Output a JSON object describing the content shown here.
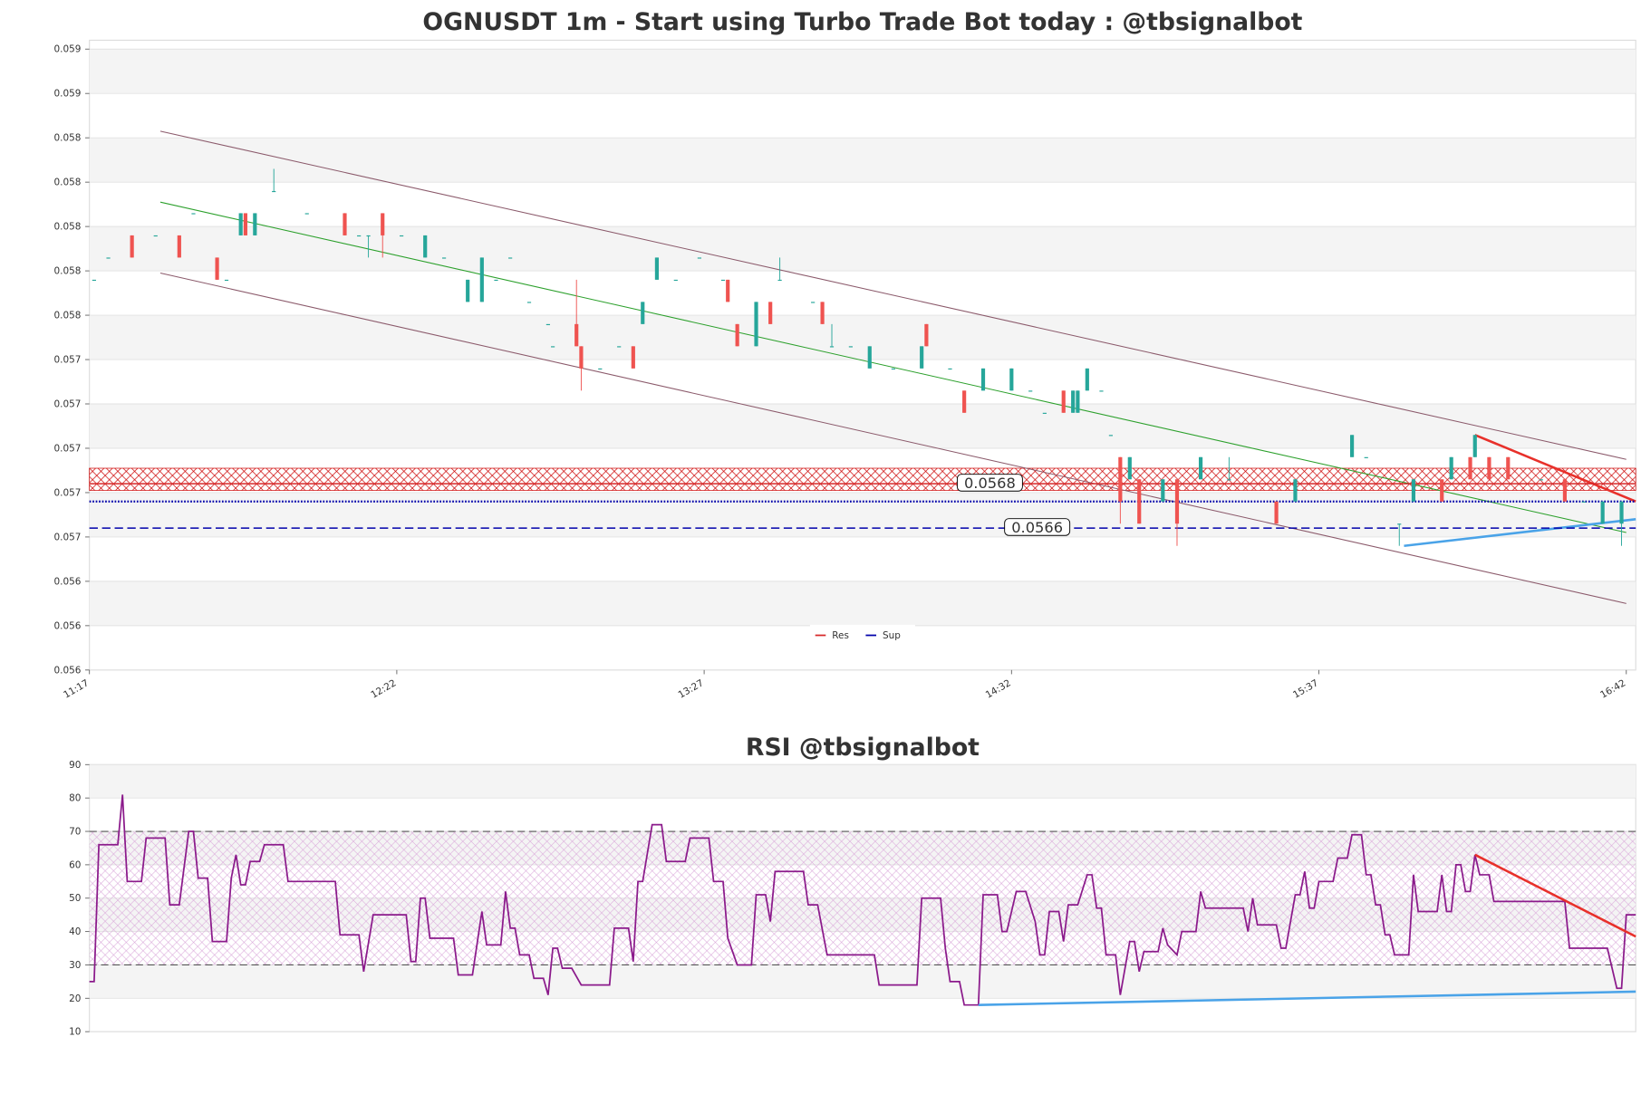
{
  "chart_data": [
    {
      "type": "candlestick",
      "title": "OGNUSDT 1m - Start using Turbo Trade Bot today : @tbsignalbot",
      "x": [
        1,
        4,
        9,
        14,
        19,
        22,
        27,
        29,
        32,
        33,
        35,
        39,
        46,
        54,
        57,
        59,
        62,
        66,
        71,
        75,
        80,
        83,
        86,
        89,
        93,
        97,
        98,
        103,
        104,
        108,
        112,
        115,
        117,
        120,
        124,
        129,
        134,
        135,
        137,
        141,
        144,
        146,
        153,
        155,
        157,
        161,
        165,
        170,
        176,
        177,
        182,
        185,
        189,
        195,
        199,
        202,
        206,
        208,
        209,
        211,
        214,
        216,
        218,
        220,
        222,
        227,
        230,
        235,
        241,
        251,
        255,
        267,
        270,
        277,
        280,
        286,
        288,
        292,
        293,
        296,
        300,
        307,
        312,
        316,
        320,
        324
      ],
      "open": [
        0.05776,
        0.05786,
        0.05796,
        0.05796,
        0.05796,
        0.05806,
        0.05786,
        0.05776,
        0.05796,
        0.05806,
        0.05796,
        0.05816,
        0.05806,
        0.05806,
        0.05796,
        0.05796,
        0.05806,
        0.05796,
        0.05786,
        0.05786,
        0.05766,
        0.05766,
        0.05776,
        0.05786,
        0.05766,
        0.05756,
        0.05746,
        0.05756,
        0.05746,
        0.05736,
        0.05746,
        0.05746,
        0.05756,
        0.05776,
        0.05776,
        0.05786,
        0.05776,
        0.05776,
        0.05756,
        0.05746,
        0.05766,
        0.05776,
        0.05766,
        0.05766,
        0.05746,
        0.05746,
        0.05736,
        0.05736,
        0.05736,
        0.05756,
        0.05736,
        0.05726,
        0.05726,
        0.05726,
        0.05726,
        0.05716,
        0.05726,
        0.05716,
        0.05716,
        0.05726,
        0.05726,
        0.05706,
        0.05696,
        0.05686,
        0.05686,
        0.05676,
        0.05686,
        0.05686,
        0.05686,
        0.05676,
        0.05676,
        0.05696,
        0.05696,
        0.05666,
        0.05676,
        0.05686,
        0.05686,
        0.05696,
        0.05696,
        0.05696,
        0.05696,
        0.05686,
        0.05686,
        0.05676,
        0.05666,
        0.05666
      ],
      "high": [
        0.05776,
        0.05786,
        0.05796,
        0.05796,
        0.05796,
        0.05806,
        0.05786,
        0.05776,
        0.05806,
        0.05806,
        0.05806,
        0.05826,
        0.05806,
        0.05806,
        0.05796,
        0.05796,
        0.05806,
        0.05796,
        0.05796,
        0.05786,
        0.05776,
        0.05786,
        0.05776,
        0.05786,
        0.05766,
        0.05756,
        0.05746,
        0.05776,
        0.05746,
        0.05736,
        0.05746,
        0.05746,
        0.05766,
        0.05786,
        0.05776,
        0.05786,
        0.05776,
        0.05776,
        0.05756,
        0.05766,
        0.05766,
        0.05786,
        0.05766,
        0.05766,
        0.05756,
        0.05746,
        0.05746,
        0.05736,
        0.05746,
        0.05756,
        0.05736,
        0.05726,
        0.05736,
        0.05736,
        0.05726,
        0.05716,
        0.05726,
        0.05726,
        0.05726,
        0.05736,
        0.05726,
        0.05706,
        0.05696,
        0.05696,
        0.05686,
        0.05686,
        0.05686,
        0.05696,
        0.05696,
        0.05676,
        0.05686,
        0.05706,
        0.05696,
        0.05666,
        0.05686,
        0.05686,
        0.05696,
        0.05696,
        0.05706,
        0.05696,
        0.05696,
        0.05686,
        0.05686,
        0.05676,
        0.05676,
        0.05676
      ],
      "low": [
        0.05776,
        0.05786,
        0.05786,
        0.05796,
        0.05786,
        0.05806,
        0.05776,
        0.05776,
        0.05796,
        0.05796,
        0.05796,
        0.05816,
        0.05806,
        0.05796,
        0.05796,
        0.05786,
        0.05786,
        0.05796,
        0.05786,
        0.05786,
        0.05766,
        0.05766,
        0.05776,
        0.05786,
        0.05766,
        0.05756,
        0.05746,
        0.05746,
        0.05726,
        0.05736,
        0.05746,
        0.05736,
        0.05756,
        0.05776,
        0.05776,
        0.05786,
        0.05776,
        0.05766,
        0.05746,
        0.05746,
        0.05756,
        0.05776,
        0.05766,
        0.05756,
        0.05746,
        0.05746,
        0.05736,
        0.05736,
        0.05736,
        0.05746,
        0.05736,
        0.05716,
        0.05726,
        0.05726,
        0.05726,
        0.05716,
        0.05716,
        0.05716,
        0.05716,
        0.05726,
        0.05726,
        0.05706,
        0.05666,
        0.05686,
        0.05666,
        0.05676,
        0.05656,
        0.05686,
        0.05686,
        0.05666,
        0.05676,
        0.05696,
        0.05696,
        0.05656,
        0.05676,
        0.05676,
        0.05686,
        0.05686,
        0.05696,
        0.05686,
        0.05686,
        0.05686,
        0.05676,
        0.05676,
        0.05666,
        0.05656
      ],
      "close": [
        0.05776,
        0.05786,
        0.05786,
        0.05796,
        0.05786,
        0.05806,
        0.05776,
        0.05776,
        0.05806,
        0.05796,
        0.05806,
        0.05816,
        0.05806,
        0.05796,
        0.05796,
        0.05796,
        0.05796,
        0.05796,
        0.05796,
        0.05786,
        0.05776,
        0.05786,
        0.05776,
        0.05786,
        0.05766,
        0.05756,
        0.05746,
        0.05746,
        0.05736,
        0.05736,
        0.05746,
        0.05736,
        0.05766,
        0.05786,
        0.05776,
        0.05786,
        0.05776,
        0.05766,
        0.05746,
        0.05766,
        0.05756,
        0.05776,
        0.05766,
        0.05756,
        0.05746,
        0.05746,
        0.05746,
        0.05736,
        0.05746,
        0.05746,
        0.05736,
        0.05716,
        0.05736,
        0.05736,
        0.05726,
        0.05716,
        0.05716,
        0.05726,
        0.05726,
        0.05736,
        0.05726,
        0.05706,
        0.05676,
        0.05696,
        0.05666,
        0.05686,
        0.05666,
        0.05696,
        0.05686,
        0.05666,
        0.05686,
        0.05706,
        0.05696,
        0.05666,
        0.05686,
        0.05676,
        0.05696,
        0.05686,
        0.05706,
        0.05686,
        0.05686,
        0.05686,
        0.05676,
        0.05676,
        0.05676,
        0.05676
      ],
      "up_color": "#26a69a",
      "down_color": "#ef5350",
      "xlim": [
        0,
        327
      ],
      "xticks": [
        {
          "value": 0,
          "label": "11:17"
        },
        {
          "value": 65,
          "label": "12:22"
        },
        {
          "value": 130,
          "label": "13:27"
        },
        {
          "value": 195,
          "label": "14:32"
        },
        {
          "value": 260,
          "label": "15:37"
        },
        {
          "value": 325,
          "label": "16:42"
        }
      ],
      "ylim": [
        0.056,
        0.05884
      ],
      "yticks": [
        {
          "value": 0.056,
          "label": "0.056"
        },
        {
          "value": 0.0562,
          "label": "0.056"
        },
        {
          "value": 0.0564,
          "label": "0.056"
        },
        {
          "value": 0.0566,
          "label": "0.057"
        },
        {
          "value": 0.0568,
          "label": "0.057"
        },
        {
          "value": 0.057,
          "label": "0.057"
        },
        {
          "value": 0.0572,
          "label": "0.057"
        },
        {
          "value": 0.0574,
          "label": "0.057"
        },
        {
          "value": 0.0576,
          "label": "0.058"
        },
        {
          "value": 0.0578,
          "label": "0.058"
        },
        {
          "value": 0.058,
          "label": "0.058"
        },
        {
          "value": 0.0582,
          "label": "0.058"
        },
        {
          "value": 0.0584,
          "label": "0.058"
        },
        {
          "value": 0.0586,
          "label": "0.059"
        },
        {
          "value": 0.0588,
          "label": "0.059"
        }
      ],
      "grid": true,
      "trendlines": [
        {
          "x": [
            15,
            325
          ],
          "y": [
            0.05843,
            0.05695
          ],
          "color": "#8b5a6b"
        },
        {
          "x": [
            15,
            325
          ],
          "y": [
            0.05811,
            0.05662
          ],
          "color": "#2ca02c"
        },
        {
          "x": [
            15,
            325
          ],
          "y": [
            0.05779,
            0.0563
          ],
          "color": "#8b5a6b"
        },
        {
          "x": [
            293,
            327
          ],
          "y": [
            0.05706,
            0.05676
          ],
          "color": "#e8302a"
        },
        {
          "x": [
            278,
            327
          ],
          "y": [
            0.05656,
            0.05668
          ],
          "color": "#4aa3e8"
        }
      ],
      "zone": {
        "values": [
          0.05681,
          0.05691
        ],
        "color": "#cc0000"
      },
      "levels": [
        {
          "name": "Res",
          "value": 0.05684,
          "label": "0.0568",
          "color": "#d62728",
          "style": "solid"
        },
        {
          "name": "Sup",
          "value": 0.05664,
          "label": "0.0566",
          "color": "#0000aa",
          "style": "dashed"
        },
        {
          "value": 0.05676,
          "color": "#0000aa",
          "style": "dotted"
        }
      ],
      "legend": "lower center"
    },
    {
      "type": "line",
      "title": "RSI @tbsignalbot",
      "x": [
        0,
        1,
        2,
        6,
        7,
        8,
        11,
        12,
        16,
        17,
        19,
        21,
        22,
        23,
        25,
        26,
        29,
        30,
        31,
        32,
        33,
        34,
        36,
        37,
        41,
        42,
        52,
        53,
        57,
        58,
        60,
        67,
        68,
        69,
        70,
        71,
        72,
        77,
        78,
        81,
        83,
        84,
        87,
        88,
        89,
        90,
        91,
        93,
        94,
        96,
        97,
        98,
        99,
        100,
        102,
        104,
        110,
        111,
        114,
        115,
        116,
        117,
        119,
        121,
        122,
        126,
        127,
        131,
        132,
        134,
        135,
        137,
        140,
        141,
        143,
        144,
        145,
        151,
        152,
        154,
        156,
        166,
        167,
        175,
        176,
        180,
        181,
        182,
        184,
        185,
        188,
        189,
        192,
        193,
        194,
        196,
        198,
        200,
        201,
        202,
        203,
        205,
        206,
        207,
        209,
        211,
        212,
        213,
        214,
        215,
        217,
        218,
        220,
        221,
        222,
        223,
        226,
        227,
        228,
        230,
        231,
        234,
        235,
        236,
        244,
        245,
        246,
        247,
        251,
        252,
        253,
        255,
        256,
        257,
        258,
        259,
        260,
        263,
        264,
        266,
        267,
        269,
        270,
        271,
        272,
        273,
        274,
        275,
        276,
        279,
        280,
        281,
        285,
        286,
        287,
        288,
        289,
        290,
        291,
        292,
        293,
        294,
        296,
        297,
        312,
        313,
        321,
        323,
        324,
        325,
        327
      ],
      "series": [
        {
          "color": "#8b1a8b",
          "values": [
            25,
            25,
            66,
            66,
            81,
            55,
            55,
            68,
            68,
            48,
            48,
            70,
            70,
            56,
            56,
            37,
            37,
            56,
            63,
            54,
            54,
            61,
            61,
            66,
            66,
            55,
            55,
            39,
            39,
            28,
            45,
            45,
            31,
            31,
            50,
            50,
            38,
            38,
            27,
            27,
            46,
            36,
            36,
            52,
            41,
            41,
            33,
            33,
            26,
            26,
            21,
            35,
            35,
            29,
            29,
            24,
            24,
            41,
            41,
            31,
            55,
            55,
            72,
            72,
            61,
            61,
            68,
            68,
            55,
            55,
            38,
            30,
            30,
            51,
            51,
            43,
            58,
            58,
            48,
            48,
            33,
            33,
            24,
            24,
            50,
            50,
            35,
            25,
            25,
            18,
            18,
            51,
            51,
            40,
            40,
            52,
            52,
            43,
            33,
            33,
            46,
            46,
            37,
            48,
            48,
            57,
            57,
            47,
            47,
            33,
            33,
            21,
            37,
            37,
            28,
            34,
            34,
            41,
            36,
            33,
            40,
            40,
            52,
            47,
            47,
            40,
            50,
            42,
            42,
            35,
            35,
            51,
            51,
            58,
            47,
            47,
            55,
            55,
            62,
            62,
            69,
            69,
            57,
            57,
            48,
            48,
            39,
            39,
            33,
            33,
            57,
            46,
            46,
            57,
            46,
            46,
            60,
            60,
            52,
            52,
            63,
            57,
            57,
            49,
            49,
            35,
            35,
            23,
            23,
            45,
            45
          ]
        }
      ],
      "xlim": [
        0,
        327
      ],
      "ylim": [
        10,
        90
      ],
      "yticks": [
        10,
        20,
        30,
        40,
        50,
        60,
        70,
        80,
        90
      ],
      "grid": true,
      "hlines": [
        70,
        30
      ],
      "band": {
        "values": [
          30,
          70
        ],
        "color": "#d9a6d9"
      },
      "trendlines": [
        {
          "x": [
            293,
            327
          ],
          "y": [
            63,
            38.5
          ],
          "color": "#e8302a"
        },
        {
          "x": [
            188,
            327
          ],
          "y": [
            18,
            22
          ],
          "color": "#4aa3e8"
        }
      ]
    }
  ]
}
